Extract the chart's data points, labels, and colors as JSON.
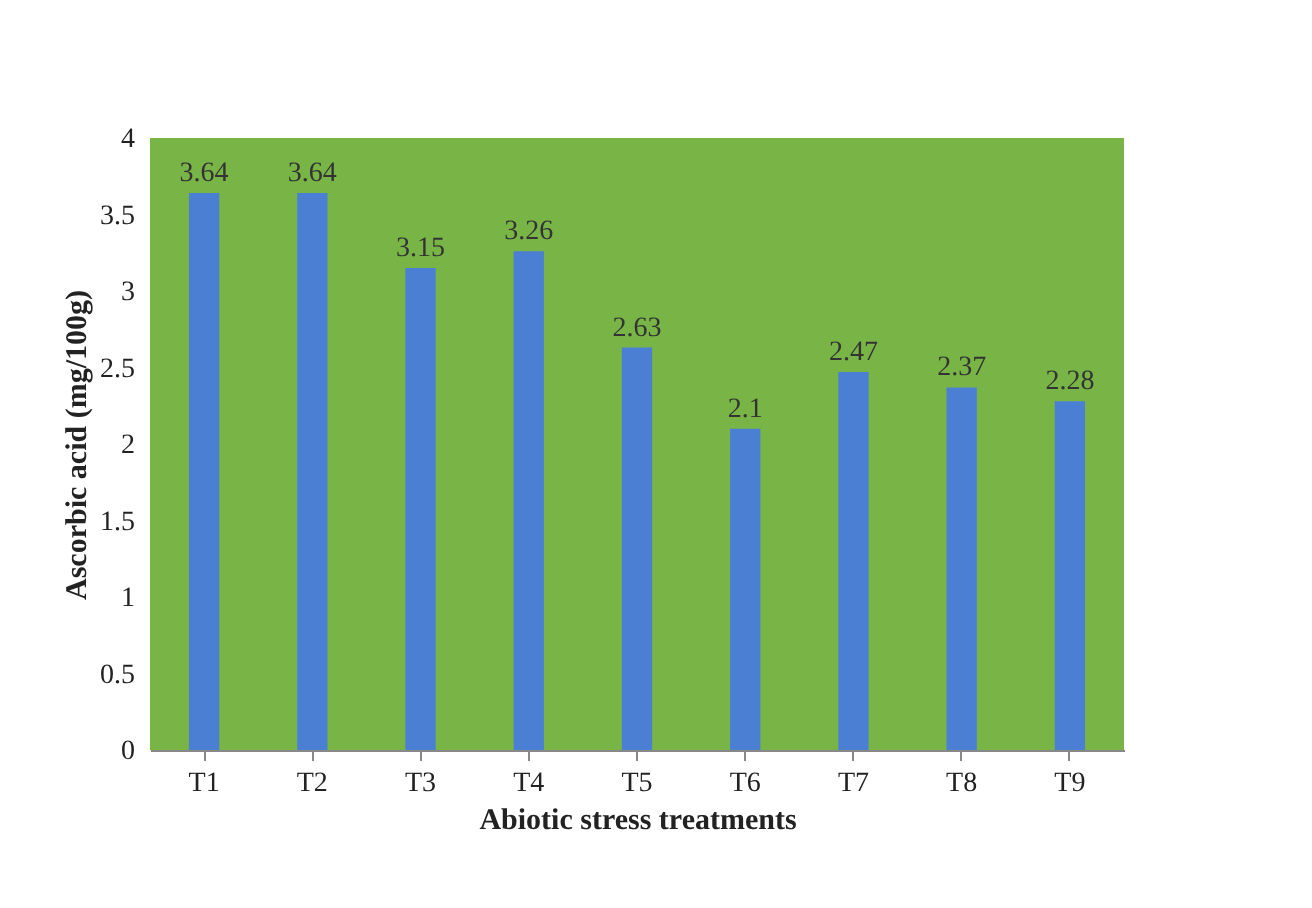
{
  "chart_data": {
    "type": "bar",
    "xlabel": "Abiotic stress treatments",
    "ylabel": "Ascorbic acid (mg/100g)",
    "categories": [
      "T1",
      "T2",
      "T3",
      "T4",
      "T5",
      "T6",
      "T7",
      "T8",
      "T9"
    ],
    "values": [
      3.64,
      3.64,
      3.15,
      3.26,
      2.63,
      2.1,
      2.47,
      2.37,
      2.28
    ],
    "color": "#4a7fd4",
    "ylim": [
      0,
      4
    ],
    "yticks": [
      0,
      0.5,
      1,
      1.5,
      2,
      2.5,
      3,
      3.5,
      4
    ],
    "grid": false,
    "data_labels": true
  }
}
